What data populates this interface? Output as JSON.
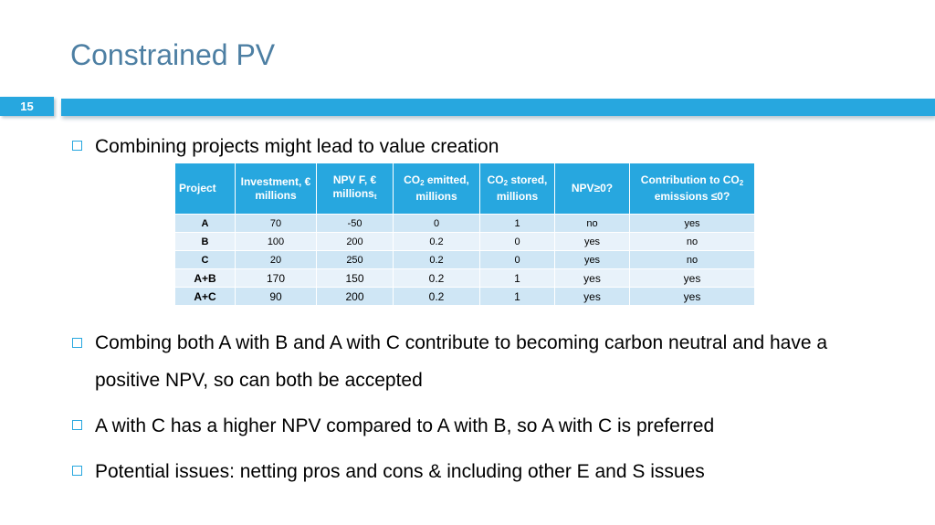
{
  "slide": {
    "title": "Constrained PV",
    "number": "15"
  },
  "bullets": {
    "b1": "Combining projects might lead to value creation",
    "b2": "Combing both A with B and A with C contribute to becoming carbon neutral and have a positive NPV, so can both be accepted",
    "b3": "A with C has a higher NPV compared to A with B, so A with C is preferred",
    "b4": "Potential issues: netting pros and cons & including other E and S issues"
  },
  "table": {
    "headers": {
      "project": "Project",
      "investment": "Investment, € millions",
      "npv": "NPV F, € millions",
      "npv_sub": "t",
      "co2_emitted_pre": "CO",
      "co2_emitted_sub": "2",
      "co2_emitted_post": " emitted, millions",
      "co2_stored_pre": "CO",
      "co2_stored_sub": "2",
      "co2_stored_post": " stored, millions",
      "npv_check": "NPV≥0?",
      "contribution_pre": "Contribution to CO",
      "contribution_sub": "2",
      "contribution_post": " emissions ≤0?"
    },
    "rows": [
      {
        "project": "A",
        "investment": "70",
        "npv": "-50",
        "co2_emitted": "0",
        "co2_stored": "1",
        "npv_check": "no",
        "contribution": "yes"
      },
      {
        "project": "B",
        "investment": "100",
        "npv": "200",
        "co2_emitted": "0.2",
        "co2_stored": "0",
        "npv_check": "yes",
        "contribution": "no"
      },
      {
        "project": "C",
        "investment": "20",
        "npv": "250",
        "co2_emitted": "0.2",
        "co2_stored": "0",
        "npv_check": "yes",
        "contribution": "no"
      },
      {
        "project": "A+B",
        "investment": "170",
        "npv": "150",
        "co2_emitted": "0.2",
        "co2_stored": "1",
        "npv_check": "yes",
        "contribution": "yes"
      },
      {
        "project": "A+C",
        "investment": "90",
        "npv": "200",
        "co2_emitted": "0.2",
        "co2_stored": "1",
        "npv_check": "yes",
        "contribution": "yes"
      }
    ]
  },
  "colors": {
    "accent": "#27a7df",
    "title": "#4d7fa3",
    "row_dark": "#cfe6f5",
    "row_light": "#e8f2fa"
  }
}
